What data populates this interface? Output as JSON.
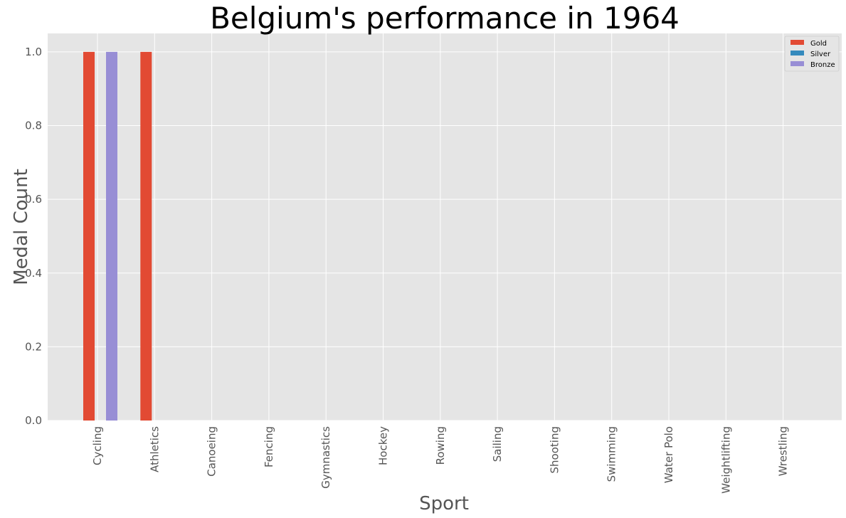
{
  "chart_data": {
    "type": "bar",
    "title": "Belgium's performance in 1964",
    "xlabel": "Sport",
    "ylabel": "Medal Count",
    "categories": [
      "Cycling",
      "Athletics",
      "Canoeing",
      "Fencing",
      "Gymnastics",
      "Hockey",
      "Rowing",
      "Sailing",
      "Shooting",
      "Swimming",
      "Water Polo",
      "Weightlifting",
      "Wrestling"
    ],
    "series": [
      {
        "name": "Gold",
        "color": "#e24a33",
        "values": [
          1,
          1,
          0,
          0,
          0,
          0,
          0,
          0,
          0,
          0,
          0,
          0,
          0
        ]
      },
      {
        "name": "Silver",
        "color": "#348abd",
        "values": [
          0,
          0,
          0,
          0,
          0,
          0,
          0,
          0,
          0,
          0,
          0,
          0,
          0
        ]
      },
      {
        "name": "Bronze",
        "color": "#988ed5",
        "values": [
          1,
          0,
          0,
          0,
          0,
          0,
          0,
          0,
          0,
          0,
          0,
          0,
          0
        ]
      }
    ],
    "ylim": [
      0,
      1.05
    ],
    "yticks": [
      "0.0",
      "0.2",
      "0.4",
      "0.6",
      "0.8",
      "1.0"
    ],
    "grid": true,
    "legend_position": "top-right",
    "plot_background": "#e5e5e5",
    "grid_color": "#ffffff"
  }
}
